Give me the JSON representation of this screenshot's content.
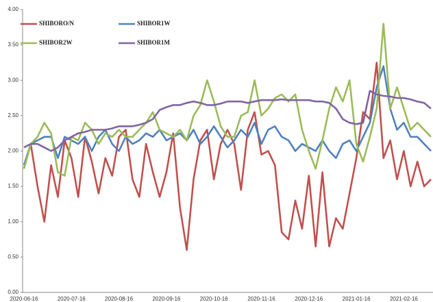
{
  "chart_data": {
    "type": "line",
    "categories": [
      "2020-06-16",
      null,
      null,
      null,
      null,
      null,
      null,
      "2020-07-16",
      null,
      null,
      null,
      null,
      null,
      null,
      "2020-08-16",
      null,
      null,
      null,
      null,
      null,
      null,
      "2020-09-16",
      null,
      null,
      null,
      null,
      null,
      null,
      "2020-10-16",
      null,
      null,
      null,
      null,
      null,
      null,
      "2020-11-16",
      null,
      null,
      null,
      null,
      null,
      null,
      "2020-12-16",
      null,
      null,
      null,
      null,
      null,
      null,
      "2021-01-16",
      null,
      null,
      null,
      null,
      null,
      null,
      "2021-02-16",
      null,
      null,
      null,
      null
    ],
    "series": [
      {
        "name": "SHIBORO/N",
        "color": "#c0504d",
        "values": [
          1.75,
          2.1,
          1.5,
          1.0,
          1.8,
          1.35,
          2.15,
          1.9,
          1.35,
          2.2,
          1.85,
          1.4,
          1.9,
          1.65,
          2.2,
          2.3,
          1.6,
          1.35,
          2.1,
          1.7,
          1.35,
          1.7,
          2.25,
          1.2,
          0.6,
          1.6,
          2.15,
          2.3,
          1.6,
          2.1,
          2.3,
          2.1,
          1.45,
          2.3,
          2.55,
          1.95,
          2.0,
          1.8,
          0.85,
          0.75,
          1.3,
          0.9,
          1.65,
          0.65,
          1.7,
          0.65,
          1.05,
          0.9,
          1.4,
          1.9,
          2.55,
          2.45,
          3.25,
          1.9,
          2.15,
          1.6,
          2.0,
          1.5,
          1.85,
          1.5,
          1.6
        ]
      },
      {
        "name": "SHIBOR1W",
        "color": "#4f81bd",
        "values": [
          1.8,
          2.1,
          2.15,
          2.2,
          2.2,
          1.9,
          2.2,
          2.15,
          2.1,
          2.2,
          2.0,
          2.2,
          2.3,
          2.1,
          2.0,
          2.2,
          2.1,
          2.15,
          2.25,
          2.2,
          2.3,
          2.15,
          2.2,
          2.25,
          2.15,
          2.3,
          2.1,
          2.2,
          2.35,
          2.2,
          2.05,
          2.15,
          2.3,
          2.2,
          2.4,
          2.1,
          2.3,
          2.35,
          2.2,
          2.15,
          2.0,
          2.1,
          2.05,
          2.0,
          2.15,
          2.0,
          1.9,
          2.1,
          2.15,
          2.0,
          2.2,
          2.4,
          2.9,
          3.2,
          2.6,
          2.3,
          2.4,
          2.2,
          2.2,
          2.1,
          2.0
        ]
      },
      {
        "name": "SHIBOR2W",
        "color": "#9bbb59",
        "values": [
          1.75,
          2.1,
          2.2,
          2.4,
          2.25,
          1.7,
          1.65,
          2.2,
          2.15,
          2.4,
          2.3,
          2.1,
          2.25,
          2.2,
          2.3,
          2.2,
          2.2,
          2.3,
          2.4,
          2.55,
          2.3,
          2.25,
          2.2,
          2.3,
          2.15,
          2.5,
          2.65,
          3.0,
          2.7,
          2.35,
          2.2,
          2.2,
          2.5,
          2.55,
          3.0,
          2.5,
          2.6,
          2.75,
          2.8,
          2.7,
          2.8,
          2.3,
          2.0,
          1.75,
          2.15,
          2.6,
          2.9,
          2.7,
          3.0,
          2.1,
          1.85,
          2.2,
          2.6,
          3.8,
          2.6,
          2.9,
          2.6,
          2.3,
          2.4,
          2.3,
          2.2
        ]
      },
      {
        "name": "SHIBOR1M",
        "color": "#8064a2",
        "values": [
          2.05,
          2.1,
          2.1,
          2.05,
          2.0,
          2.05,
          2.15,
          2.2,
          2.25,
          2.27,
          2.3,
          2.3,
          2.3,
          2.32,
          2.35,
          2.35,
          2.35,
          2.37,
          2.4,
          2.45,
          2.58,
          2.62,
          2.65,
          2.65,
          2.68,
          2.7,
          2.68,
          2.65,
          2.65,
          2.67,
          2.7,
          2.7,
          2.7,
          2.68,
          2.7,
          2.72,
          2.72,
          2.72,
          2.73,
          2.72,
          2.72,
          2.72,
          2.72,
          2.7,
          2.7,
          2.68,
          2.6,
          2.45,
          2.4,
          2.38,
          2.4,
          2.85,
          2.8,
          2.78,
          2.77,
          2.75,
          2.75,
          2.73,
          2.7,
          2.68,
          2.6
        ]
      }
    ],
    "ylim": [
      0,
      4
    ],
    "yticks": [
      {
        "value": 0,
        "label": "0.00"
      },
      {
        "value": 0.5,
        "label": "0.50"
      },
      {
        "value": 1,
        "label": "1.00"
      },
      {
        "value": 1.5,
        "label": "1.50"
      },
      {
        "value": 2,
        "label": "2.00"
      },
      {
        "value": 2.5,
        "label": "2.50"
      },
      {
        "value": 3,
        "label": "3.00"
      },
      {
        "value": 3.5,
        "label": "3.50"
      },
      {
        "value": 4,
        "label": "4.00"
      }
    ],
    "grid": false,
    "legend": "top-left"
  }
}
